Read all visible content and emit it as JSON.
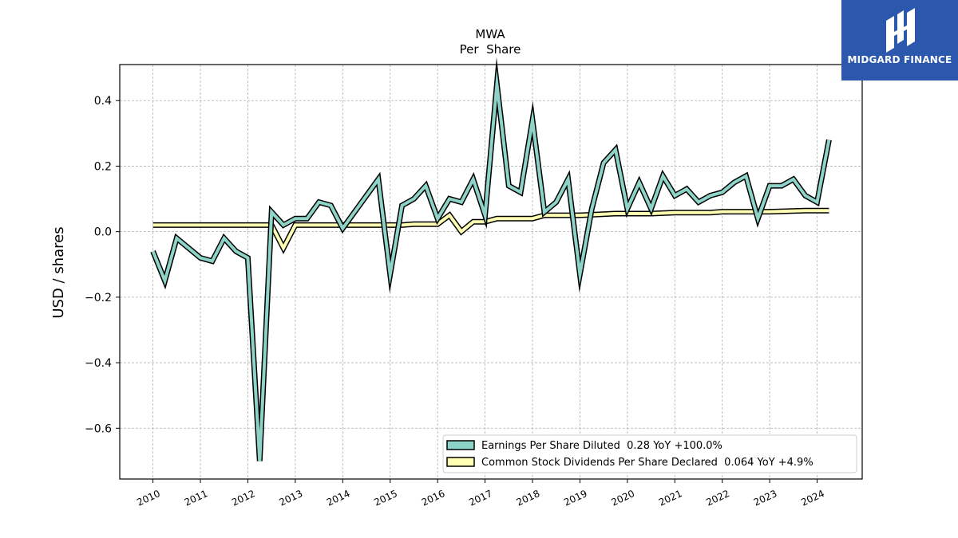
{
  "chart_data": {
    "type": "line",
    "title": "MWA",
    "subtitle": "Per  Share",
    "xlabel": "",
    "ylabel": "USD / shares",
    "xlim": [
      2009.3,
      2024.95
    ],
    "ylim": [
      -0.755,
      0.51
    ],
    "yticks": [
      0.4,
      0.2,
      0.0,
      -0.2,
      -0.4,
      -0.6
    ],
    "ytick_labels": [
      "0.4",
      "0.2",
      "0.0",
      "−0.2",
      "−0.4",
      "−0.6"
    ],
    "xticks": [
      2010,
      2011,
      2012,
      2013,
      2014,
      2015,
      2016,
      2017,
      2018,
      2019,
      2020,
      2021,
      2022,
      2023,
      2024
    ],
    "xtick_labels": [
      "2010",
      "2011",
      "2012",
      "2013",
      "2014",
      "2015",
      "2016",
      "2017",
      "2018",
      "2019",
      "2020",
      "2021",
      "2022",
      "2023",
      "2024"
    ],
    "grid": true,
    "legend_position": "lower-right",
    "series": [
      {
        "name": "Earnings Per Share Diluted",
        "legend_label": "Earnings Per Share Diluted  0.28 YoY +100.0%",
        "color": "#8dd3c7",
        "x": [
          2010.0,
          2010.25,
          2010.5,
          2010.75,
          2011.0,
          2011.25,
          2011.5,
          2011.75,
          2012.0,
          2012.25,
          2012.5,
          2012.75,
          2013.0,
          2013.25,
          2013.5,
          2013.75,
          2014.0,
          2014.75,
          2015.0,
          2015.25,
          2015.5,
          2015.75,
          2016.0,
          2016.25,
          2016.5,
          2016.75,
          2017.0,
          2017.25,
          2017.5,
          2017.75,
          2018.0,
          2018.25,
          2018.5,
          2018.75,
          2019.0,
          2019.25,
          2019.5,
          2019.75,
          2020.0,
          2020.25,
          2020.5,
          2020.75,
          2021.0,
          2021.25,
          2021.5,
          2021.75,
          2022.0,
          2022.25,
          2022.5,
          2022.75,
          2023.0,
          2023.25,
          2023.5,
          2023.75,
          2024.0,
          2024.25
        ],
        "values": [
          -0.06,
          -0.15,
          -0.02,
          -0.05,
          -0.08,
          -0.09,
          -0.02,
          -0.06,
          -0.08,
          -0.7,
          0.06,
          0.02,
          0.04,
          0.04,
          0.09,
          0.08,
          0.01,
          0.16,
          -0.13,
          0.08,
          0.1,
          0.14,
          0.04,
          0.1,
          0.09,
          0.16,
          0.05,
          0.45,
          0.14,
          0.12,
          0.34,
          0.06,
          0.09,
          0.16,
          -0.13,
          0.07,
          0.21,
          0.25,
          0.07,
          0.15,
          0.07,
          0.17,
          0.11,
          0.13,
          0.09,
          0.11,
          0.12,
          0.15,
          0.17,
          0.04,
          0.14,
          0.14,
          0.16,
          0.11,
          0.09,
          0.28
        ]
      },
      {
        "name": "Common Stock Dividends Per Share Declared",
        "legend_label": "Common Stock Dividends Per Share Declared  0.064 YoY +4.9%",
        "color": "#ffffb3",
        "x": [
          2010.0,
          2012.5,
          2012.75,
          2013.0,
          2015.25,
          2015.5,
          2016.0,
          2016.25,
          2016.5,
          2016.75,
          2017.0,
          2017.25,
          2018.0,
          2018.25,
          2019.0,
          2019.75,
          2020.5,
          2021.0,
          2021.75,
          2022.0,
          2023.0,
          2023.75,
          2024.0,
          2024.25
        ],
        "values": [
          0.02,
          0.02,
          -0.05,
          0.02,
          0.02,
          0.023,
          0.023,
          0.05,
          0.0,
          0.03,
          0.03,
          0.04,
          0.04,
          0.05,
          0.05,
          0.055,
          0.055,
          0.058,
          0.058,
          0.061,
          0.061,
          0.064,
          0.064,
          0.064
        ]
      }
    ]
  },
  "logo": {
    "text": "MIDGARD FINANCE",
    "background": "#2b58ad"
  }
}
